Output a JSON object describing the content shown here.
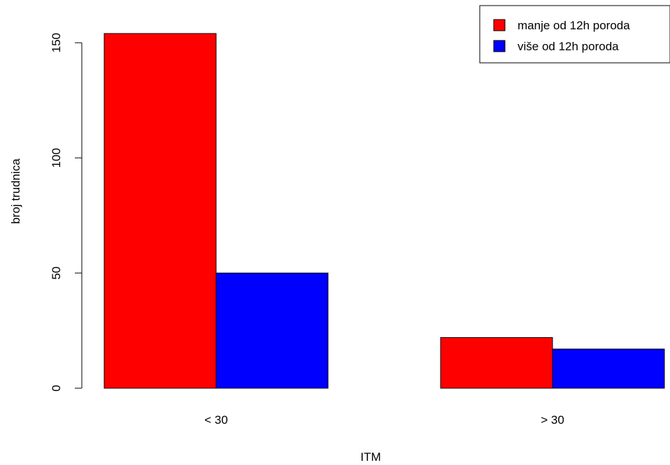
{
  "chart_data": {
    "type": "bar",
    "categories": [
      "< 30",
      "> 30"
    ],
    "series": [
      {
        "name": "manje od 12h poroda",
        "color": "#ff0000",
        "values": [
          154,
          22
        ]
      },
      {
        "name": "više od 12h poroda",
        "color": "#0000ff",
        "values": [
          50,
          17
        ]
      }
    ],
    "xlabel": "ITM",
    "ylabel": "broj trudnica",
    "yticks": [
      0,
      50,
      100,
      150
    ],
    "ylim": [
      0,
      154
    ],
    "grid": false,
    "legend_position": "top-right"
  }
}
